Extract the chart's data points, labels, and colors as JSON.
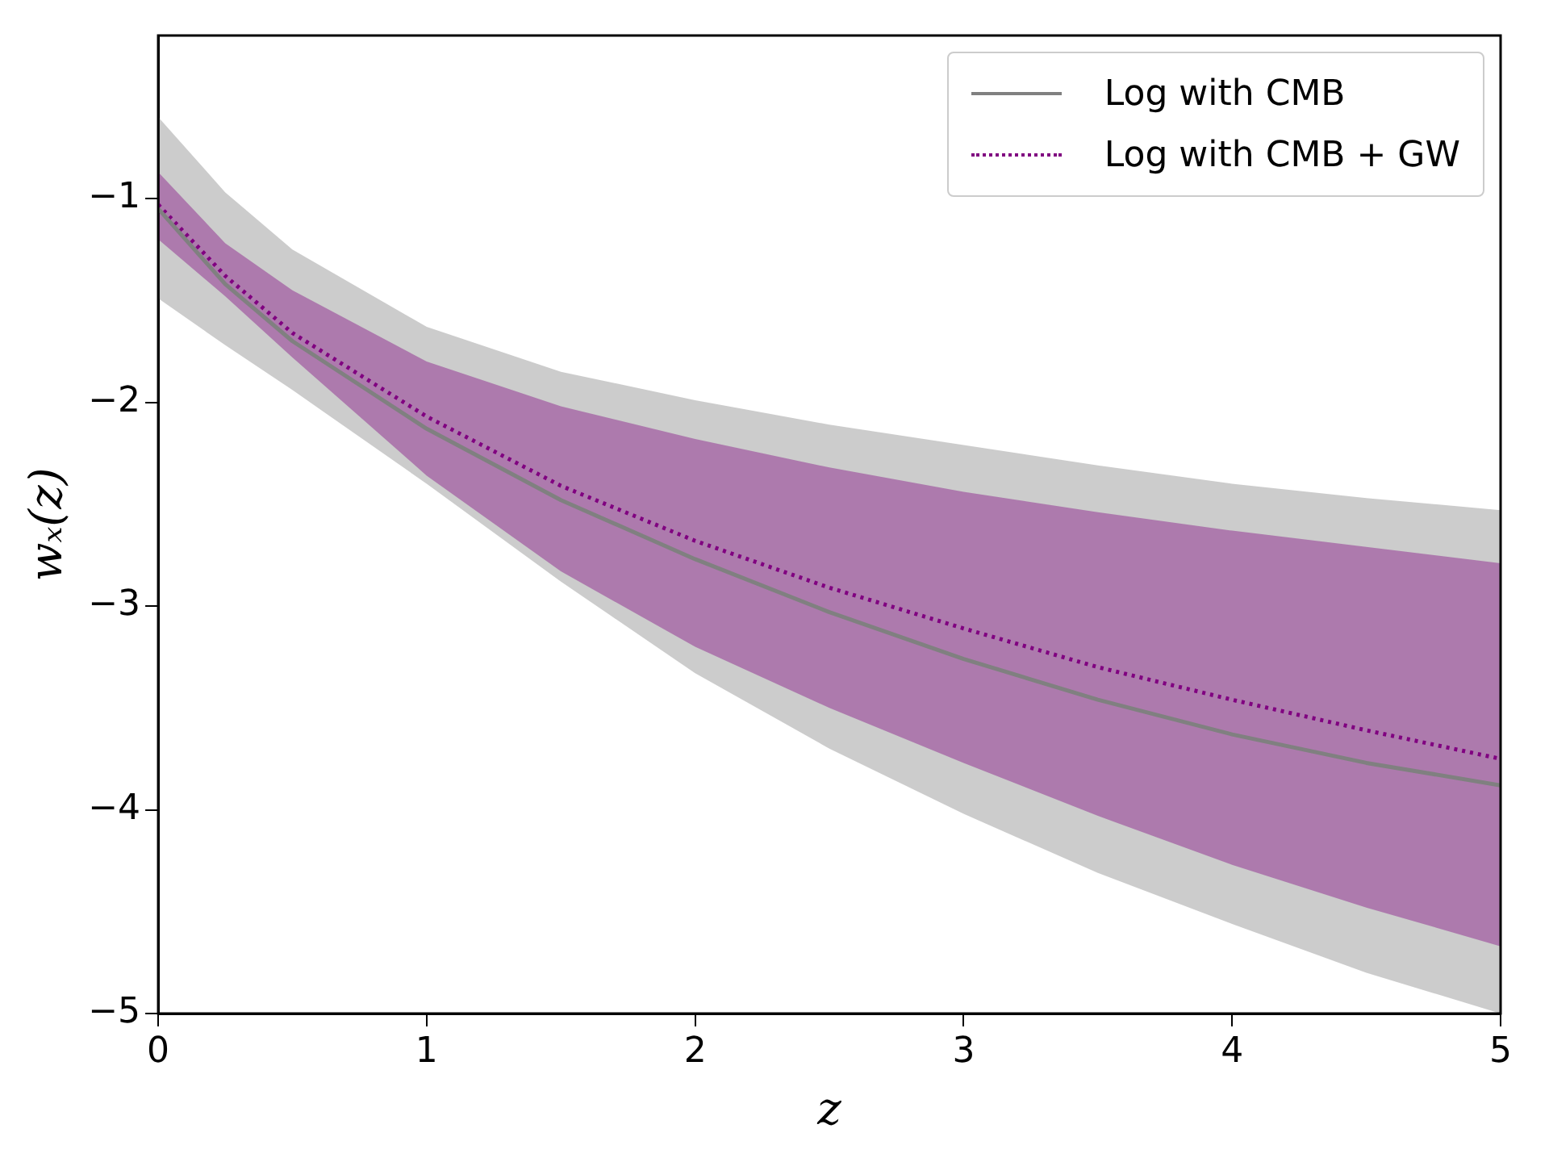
{
  "chart_data": {
    "type": "line",
    "xlabel": "z",
    "ylabel": "wₓ(z)",
    "x": [
      0,
      0.25,
      0.5,
      1,
      1.5,
      2,
      2.5,
      3,
      3.5,
      4,
      4.5,
      5
    ],
    "series": [
      {
        "name": "Log with CMB",
        "color": "#808080",
        "line_style": "solid",
        "values": [
          -1.05,
          -1.42,
          -1.7,
          -2.13,
          -2.48,
          -2.77,
          -3.03,
          -3.26,
          -3.46,
          -3.63,
          -3.77,
          -3.88
        ],
        "lower": [
          -1.49,
          -1.72,
          -1.94,
          -2.4,
          -2.88,
          -3.33,
          -3.7,
          -4.02,
          -4.31,
          -4.56,
          -4.8,
          -5.0
        ],
        "upper": [
          -0.6,
          -0.97,
          -1.25,
          -1.63,
          -1.85,
          -1.99,
          -2.11,
          -2.21,
          -2.31,
          -2.4,
          -2.47,
          -2.53
        ]
      },
      {
        "name": "Log with CMB + GW",
        "color": "#800080",
        "line_style": "dotted",
        "values": [
          -1.03,
          -1.38,
          -1.66,
          -2.07,
          -2.41,
          -2.68,
          -2.91,
          -3.11,
          -3.3,
          -3.46,
          -3.61,
          -3.75
        ],
        "lower": [
          -1.2,
          -1.48,
          -1.78,
          -2.36,
          -2.83,
          -3.2,
          -3.5,
          -3.77,
          -4.03,
          -4.27,
          -4.48,
          -4.67
        ],
        "upper": [
          -0.87,
          -1.22,
          -1.45,
          -1.8,
          -2.02,
          -2.18,
          -2.32,
          -2.44,
          -2.54,
          -2.63,
          -2.71,
          -2.79
        ]
      }
    ],
    "xlim": [
      0,
      5
    ],
    "xticks": [
      0,
      1,
      2,
      3,
      4,
      5
    ],
    "ylim": [
      -5,
      -0.2
    ],
    "yticks": [
      {
        "value": -5,
        "label": "−5"
      },
      {
        "value": -4,
        "label": "−4"
      },
      {
        "value": -3,
        "label": "−3"
      },
      {
        "value": -2,
        "label": "−2"
      },
      {
        "value": -1,
        "label": "−1"
      }
    ],
    "grid": false,
    "legend": "top right",
    "marker": "none"
  }
}
